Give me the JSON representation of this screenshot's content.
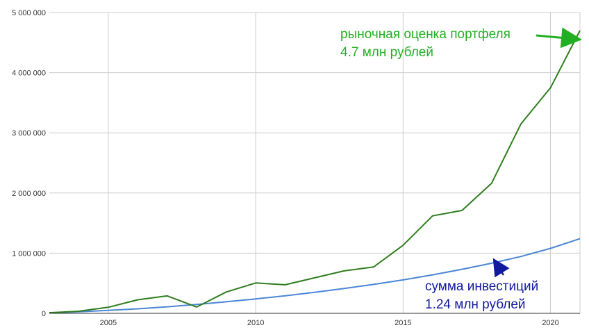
{
  "chart_data": {
    "type": "line",
    "title": "",
    "xlabel": "",
    "ylabel": "",
    "xlim": [
      2003,
      2021
    ],
    "ylim": [
      0,
      5000000
    ],
    "grid": true,
    "legend": "none",
    "x_ticks": [
      {
        "value": 2005,
        "label": "2005"
      },
      {
        "value": 2010,
        "label": "2010"
      },
      {
        "value": 2015,
        "label": "2015"
      },
      {
        "value": 2020,
        "label": "2020"
      }
    ],
    "y_ticks": [
      {
        "value": 0,
        "label": "0"
      },
      {
        "value": 1000000,
        "label": "1 000 000"
      },
      {
        "value": 2000000,
        "label": "2 000 000"
      },
      {
        "value": 3000000,
        "label": "3 000 000"
      },
      {
        "value": 4000000,
        "label": "4 000 000"
      },
      {
        "value": 5000000,
        "label": "5 000 000"
      }
    ],
    "series": [
      {
        "key": "market",
        "color": "#2e7d1e",
        "x": [
          2003,
          2004,
          2005,
          2006,
          2007,
          2008,
          2009,
          2010,
          2011,
          2012,
          2013,
          2014,
          2015,
          2016,
          2017,
          2018,
          2019,
          2020,
          2021
        ],
        "values": [
          10000,
          35000,
          100000,
          225000,
          290000,
          105000,
          355000,
          505000,
          475000,
          590000,
          705000,
          770000,
          1130000,
          1620000,
          1710000,
          2160000,
          3150000,
          3750000,
          4700000
        ]
      },
      {
        "key": "invested",
        "color": "#4a86d6",
        "x": [
          2003,
          2004,
          2005,
          2006,
          2007,
          2008,
          2009,
          2010,
          2011,
          2012,
          2013,
          2014,
          2015,
          2016,
          2017,
          2018,
          2019,
          2020,
          2021
        ],
        "values": [
          8000,
          25000,
          48000,
          75000,
          108000,
          148000,
          192000,
          240000,
          292000,
          350000,
          412000,
          480000,
          555000,
          640000,
          732000,
          832000,
          945000,
          1080000,
          1240000
        ]
      }
    ],
    "annotations": [
      {
        "key": "market",
        "color": "#22b022",
        "line1": "рыночная оценка портфеля",
        "line2": "4.7 млн рублей"
      },
      {
        "key": "invested",
        "color": "#12199e",
        "line1": "сумма инвестиций",
        "line2": "1.24 млн рублей"
      }
    ]
  }
}
